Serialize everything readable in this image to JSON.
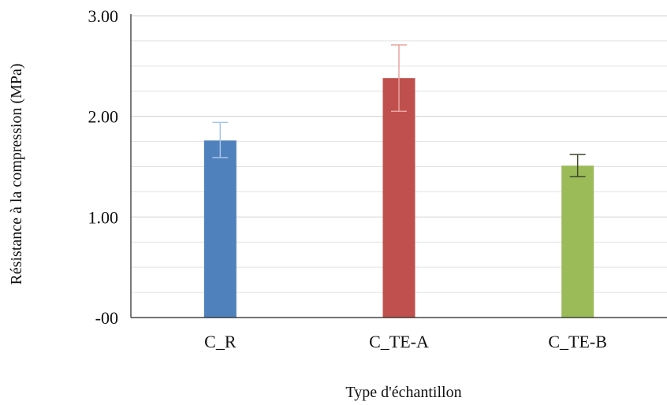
{
  "chart_data": {
    "type": "bar",
    "title": "",
    "xlabel": "Type d'échantillon",
    "ylabel": "Résistance à la compression (MPa)",
    "categories": [
      "C_R",
      "C_TE-A",
      "C_TE-B"
    ],
    "values": [
      1.76,
      2.38,
      1.51
    ],
    "error_low": [
      1.59,
      2.05,
      1.4
    ],
    "error_high": [
      1.94,
      2.71,
      1.62
    ],
    "colors": [
      "#4f81bd",
      "#c0504d",
      "#9bbb59"
    ],
    "error_colors": [
      "#a9c4e6",
      "#e8a4a2",
      "#3f4a2a"
    ],
    "ylim": [
      0,
      3.0
    ],
    "yticks": [
      0,
      1.0,
      2.0,
      3.0
    ],
    "ytick_labels": [
      "-00",
      "1.00",
      "2.00",
      "3.00"
    ],
    "minor_gridlines": true,
    "grid": true
  }
}
